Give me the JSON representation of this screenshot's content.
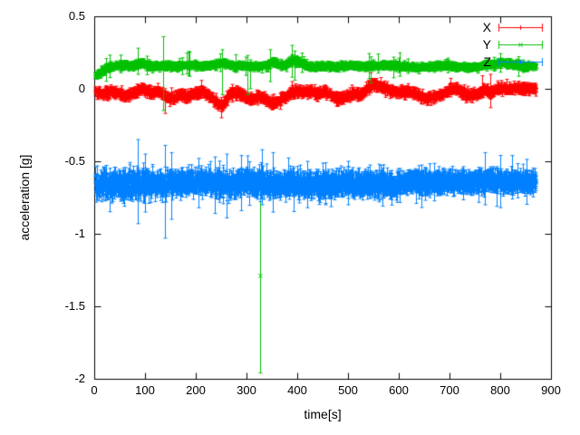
{
  "chart_data": {
    "type": "scatter",
    "plot_style": "errorbars",
    "title": "",
    "xlabel": "time[s]",
    "ylabel": "acceleration [g]",
    "xlim": [
      0,
      900
    ],
    "ylim": [
      -2,
      0.5
    ],
    "grid": false,
    "border_color": "#000000",
    "xticks": {
      "values": [
        0,
        100,
        200,
        300,
        400,
        500,
        600,
        700,
        800,
        900
      ],
      "labels": [
        "0",
        "100",
        "200",
        "300",
        "400",
        "500",
        "600",
        "700",
        "800",
        "900"
      ]
    },
    "yticks": {
      "values": [
        0.5,
        0,
        -0.5,
        -1,
        -1.5,
        -2
      ],
      "labels": [
        "0.5",
        "0",
        "-0.5",
        "-1",
        "-1.5",
        "-2"
      ]
    },
    "legend": {
      "position": "top-right-inside",
      "entries": [
        {
          "label": "X",
          "color": "#ff0000",
          "marker": "plus"
        },
        {
          "label": "Y",
          "color": "#00c000",
          "marker": "cross"
        },
        {
          "label": "Z",
          "color": "#0080ff",
          "marker": "star"
        }
      ]
    },
    "t_start": 2,
    "t_end": 870,
    "t_step": 0.5,
    "series": [
      {
        "name": "X",
        "color": "#ff0000",
        "marker": "plus",
        "noise_segments": [
          [
            900,
            0.013
          ]
        ],
        "errbar": {
          "base": 0.012,
          "var": 0.018,
          "big_p": 0.02,
          "big": 0.04
        },
        "trend": [
          [
            2,
            -0.02
          ],
          [
            15,
            -0.035
          ],
          [
            30,
            -0.02
          ],
          [
            45,
            -0.03
          ],
          [
            60,
            -0.055
          ],
          [
            75,
            -0.03
          ],
          [
            90,
            -0.005
          ],
          [
            100,
            -0.01
          ],
          [
            112,
            -0.03
          ],
          [
            125,
            -0.015
          ],
          [
            140,
            -0.055
          ],
          [
            155,
            -0.065
          ],
          [
            168,
            -0.04
          ],
          [
            182,
            -0.055
          ],
          [
            196,
            -0.035
          ],
          [
            210,
            -0.02
          ],
          [
            225,
            -0.045
          ],
          [
            240,
            -0.09
          ],
          [
            250,
            -0.12
          ],
          [
            258,
            -0.085
          ],
          [
            268,
            -0.035
          ],
          [
            282,
            -0.03
          ],
          [
            296,
            -0.055
          ],
          [
            310,
            -0.075
          ],
          [
            322,
            -0.055
          ],
          [
            335,
            -0.07
          ],
          [
            348,
            -0.1
          ],
          [
            360,
            -0.095
          ],
          [
            372,
            -0.06
          ],
          [
            385,
            -0.03
          ],
          [
            398,
            -0.015
          ],
          [
            412,
            -0.025
          ],
          [
            428,
            -0.02
          ],
          [
            442,
            -0.035
          ],
          [
            455,
            -0.02
          ],
          [
            468,
            -0.05
          ],
          [
            482,
            -0.075
          ],
          [
            496,
            -0.055
          ],
          [
            510,
            -0.035
          ],
          [
            524,
            -0.045
          ],
          [
            538,
            0.0
          ],
          [
            550,
            0.035
          ],
          [
            562,
            0.025
          ],
          [
            575,
            0.0
          ],
          [
            590,
            -0.02
          ],
          [
            605,
            -0.025
          ],
          [
            620,
            -0.015
          ],
          [
            636,
            -0.045
          ],
          [
            652,
            -0.065
          ],
          [
            668,
            -0.055
          ],
          [
            684,
            -0.04
          ],
          [
            700,
            -0.01
          ],
          [
            712,
            0.0
          ],
          [
            726,
            -0.025
          ],
          [
            740,
            -0.045
          ],
          [
            754,
            -0.035
          ],
          [
            768,
            -0.01
          ],
          [
            780,
            -0.025
          ],
          [
            790,
            -0.01
          ],
          [
            805,
            0.005
          ],
          [
            820,
            0.0
          ],
          [
            838,
            0.005
          ],
          [
            855,
            0.0
          ],
          [
            870,
            0.0
          ]
        ],
        "spikes": [
          {
            "t": 140,
            "lo": -0.17,
            "hi": -0.02
          },
          {
            "t": 250,
            "lo": -0.2,
            "hi": -0.06
          },
          {
            "t": 390,
            "lo": -0.06,
            "hi": 0.05
          },
          {
            "t": 545,
            "lo": -0.01,
            "hi": 0.11
          },
          {
            "t": 765,
            "lo": -0.06,
            "hi": 0.09
          },
          {
            "t": 781,
            "lo": -0.13,
            "hi": 0.1
          }
        ]
      },
      {
        "name": "Y",
        "color": "#00c000",
        "marker": "cross",
        "noise_segments": [
          [
            900,
            0.01
          ]
        ],
        "errbar": {
          "base": 0.01,
          "var": 0.012,
          "big_p": 0.02,
          "big": 0.07
        },
        "trend": [
          [
            2,
            0.09
          ],
          [
            12,
            0.105
          ],
          [
            25,
            0.145
          ],
          [
            40,
            0.155
          ],
          [
            55,
            0.16
          ],
          [
            70,
            0.155
          ],
          [
            85,
            0.17
          ],
          [
            95,
            0.18
          ],
          [
            108,
            0.16
          ],
          [
            122,
            0.155
          ],
          [
            136,
            0.16
          ],
          [
            150,
            0.155
          ],
          [
            165,
            0.155
          ],
          [
            180,
            0.16
          ],
          [
            195,
            0.165
          ],
          [
            210,
            0.155
          ],
          [
            226,
            0.16
          ],
          [
            240,
            0.17
          ],
          [
            252,
            0.185
          ],
          [
            264,
            0.16
          ],
          [
            280,
            0.152
          ],
          [
            296,
            0.155
          ],
          [
            312,
            0.158
          ],
          [
            326,
            0.152
          ],
          [
            340,
            0.16
          ],
          [
            352,
            0.185
          ],
          [
            364,
            0.165
          ],
          [
            378,
            0.17
          ],
          [
            390,
            0.195
          ],
          [
            402,
            0.18
          ],
          [
            414,
            0.162
          ],
          [
            428,
            0.152
          ],
          [
            444,
            0.155
          ],
          [
            462,
            0.158
          ],
          [
            480,
            0.152
          ],
          [
            500,
            0.158
          ],
          [
            520,
            0.153
          ],
          [
            540,
            0.155
          ],
          [
            560,
            0.158
          ],
          [
            580,
            0.163
          ],
          [
            600,
            0.158
          ],
          [
            620,
            0.152
          ],
          [
            640,
            0.148
          ],
          [
            660,
            0.153
          ],
          [
            680,
            0.158
          ],
          [
            700,
            0.158
          ],
          [
            720,
            0.152
          ],
          [
            740,
            0.148
          ],
          [
            758,
            0.153
          ],
          [
            775,
            0.168
          ],
          [
            790,
            0.173
          ],
          [
            805,
            0.182
          ],
          [
            820,
            0.172
          ],
          [
            835,
            0.162
          ],
          [
            852,
            0.155
          ],
          [
            870,
            0.15
          ]
        ],
        "spikes": [
          {
            "t": 85,
            "lo": 0.1,
            "hi": 0.28
          },
          {
            "t": 136,
            "lo": -0.15,
            "hi": 0.36
          },
          {
            "t": 252,
            "lo": -0.04,
            "hi": 0.27
          },
          {
            "t": 302,
            "lo": -0.04,
            "hi": 0.23
          },
          {
            "t": 308,
            "lo": 0.0,
            "hi": 0.2
          },
          {
            "t": 347,
            "lo": 0.05,
            "hi": 0.27
          },
          {
            "t": 390,
            "lo": 0.08,
            "hi": 0.3
          },
          {
            "t": 395,
            "lo": 0.06,
            "hi": 0.26
          },
          {
            "t": 545,
            "lo": 0.04,
            "hi": 0.22
          },
          {
            "t": 327,
            "lo": -1.96,
            "hi": -0.65,
            "center": -1.29
          }
        ]
      },
      {
        "name": "Z",
        "color": "#0080ff",
        "marker": "star",
        "noise_segments": [
          [
            160,
            0.034
          ],
          [
            600,
            0.027
          ],
          [
            900,
            0.018
          ]
        ],
        "errbar": {
          "base": 0.032,
          "var": 0.04,
          "big_p": 0.03,
          "big": 0.09
        },
        "trend": [
          [
            2,
            -0.655
          ],
          [
            20,
            -0.66
          ],
          [
            40,
            -0.66
          ],
          [
            60,
            -0.665
          ],
          [
            80,
            -0.655
          ],
          [
            100,
            -0.655
          ],
          [
            120,
            -0.66
          ],
          [
            140,
            -0.655
          ],
          [
            160,
            -0.66
          ],
          [
            180,
            -0.648
          ],
          [
            200,
            -0.64
          ],
          [
            220,
            -0.645
          ],
          [
            240,
            -0.658
          ],
          [
            260,
            -0.665
          ],
          [
            280,
            -0.655
          ],
          [
            300,
            -0.642
          ],
          [
            320,
            -0.645
          ],
          [
            340,
            -0.655
          ],
          [
            360,
            -0.665
          ],
          [
            380,
            -0.66
          ],
          [
            400,
            -0.655
          ],
          [
            420,
            -0.66
          ],
          [
            440,
            -0.665
          ],
          [
            460,
            -0.668
          ],
          [
            480,
            -0.663
          ],
          [
            500,
            -0.656
          ],
          [
            520,
            -0.654
          ],
          [
            540,
            -0.65
          ],
          [
            560,
            -0.654
          ],
          [
            580,
            -0.66
          ],
          [
            600,
            -0.658
          ],
          [
            620,
            -0.642
          ],
          [
            640,
            -0.636
          ],
          [
            660,
            -0.64
          ],
          [
            680,
            -0.645
          ],
          [
            700,
            -0.64
          ],
          [
            720,
            -0.64
          ],
          [
            740,
            -0.644
          ],
          [
            760,
            -0.638
          ],
          [
            780,
            -0.635
          ],
          [
            800,
            -0.644
          ],
          [
            820,
            -0.64
          ],
          [
            840,
            -0.64
          ],
          [
            860,
            -0.643
          ],
          [
            870,
            -0.64
          ]
        ],
        "spikes": [
          {
            "t": 86,
            "lo": -0.93,
            "hi": -0.35
          },
          {
            "t": 100,
            "lo": -0.85,
            "hi": -0.45
          },
          {
            "t": 140,
            "lo": -1.03,
            "hi": -0.39
          },
          {
            "t": 152,
            "lo": -0.9,
            "hi": -0.44
          },
          {
            "t": 205,
            "lo": -0.82,
            "hi": -0.48
          },
          {
            "t": 238,
            "lo": -0.86,
            "hi": -0.47
          },
          {
            "t": 260,
            "lo": -0.89,
            "hi": -0.45
          },
          {
            "t": 290,
            "lo": -0.84,
            "hi": -0.46
          },
          {
            "t": 330,
            "lo": -0.8,
            "hi": -0.42
          },
          {
            "t": 352,
            "lo": -0.85,
            "hi": -0.44
          },
          {
            "t": 420,
            "lo": -0.82,
            "hi": -0.5
          },
          {
            "t": 455,
            "lo": -0.8,
            "hi": -0.51
          },
          {
            "t": 500,
            "lo": -0.8,
            "hi": -0.5
          },
          {
            "t": 560,
            "lo": -0.78,
            "hi": -0.52
          },
          {
            "t": 640,
            "lo": -0.76,
            "hi": -0.53
          },
          {
            "t": 770,
            "lo": -0.8,
            "hi": -0.44
          },
          {
            "t": 800,
            "lo": -0.82,
            "hi": -0.46
          },
          {
            "t": 823,
            "lo": -0.76,
            "hi": -0.46
          }
        ]
      }
    ]
  }
}
